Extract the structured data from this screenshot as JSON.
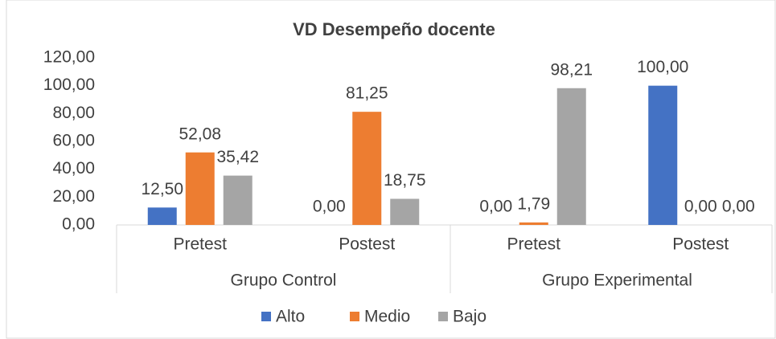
{
  "chart_data": {
    "type": "bar",
    "title": "VD Desempeño docente",
    "groups": [
      {
        "label": "Grupo Control",
        "categories": [
          "Pretest",
          "Postest"
        ]
      },
      {
        "label": "Grupo Experimental",
        "categories": [
          "Pretest",
          "Postest"
        ]
      }
    ],
    "series": [
      {
        "name": "Alto",
        "color": "#4472c4",
        "values": [
          12.5,
          0,
          0,
          100
        ],
        "value_labels": [
          "12,50",
          "0,00",
          "0,00",
          "100,00"
        ]
      },
      {
        "name": "Medio",
        "color": "#ed7d31",
        "values": [
          52.08,
          81.25,
          1.79,
          0
        ],
        "value_labels": [
          "52,08",
          "81,25",
          "1,79",
          "0,00"
        ]
      },
      {
        "name": "Bajo",
        "color": "#a5a5a5",
        "values": [
          35.42,
          18.75,
          98.21,
          0
        ],
        "value_labels": [
          "35,42",
          "18,75",
          "98,21",
          "0,00"
        ]
      }
    ],
    "ylim": [
      0,
      120
    ],
    "yticks": [
      {
        "value": 0,
        "label": "0,00"
      },
      {
        "value": 20,
        "label": "20,00"
      },
      {
        "value": 40,
        "label": "40,00"
      },
      {
        "value": 60,
        "label": "60,00"
      },
      {
        "value": 80,
        "label": "80,00"
      },
      {
        "value": 100,
        "label": "100,00"
      },
      {
        "value": 120,
        "label": "120,00"
      }
    ],
    "grid": false,
    "legend": "bottom"
  }
}
